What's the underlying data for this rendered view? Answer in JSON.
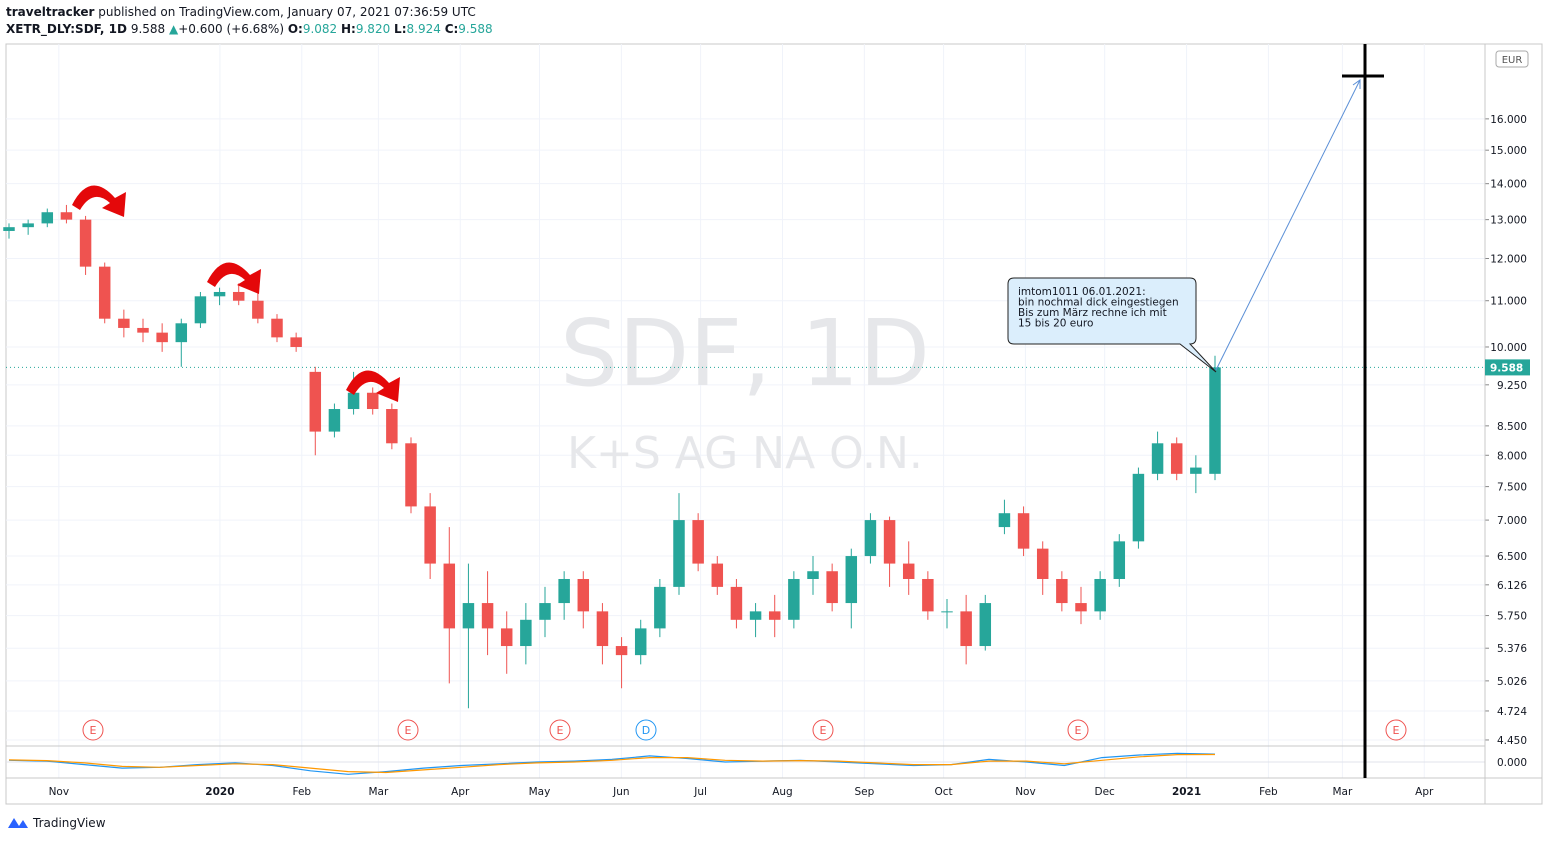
{
  "header": {
    "publisher": "traveltracker",
    "published": "published on TradingView.com, January 07, 2021 07:36:59 UTC",
    "symbol": "XETR_DLY:SDF, 1D",
    "last": "9.588",
    "change": "+0.600 (+6.68%)",
    "o_label": "O:",
    "o": "9.082",
    "h_label": "H:",
    "h": "9.820",
    "l_label": "L:",
    "l": "8.924",
    "c_label": "C:",
    "c": "9.588"
  },
  "chart_data": {
    "type": "candlestick",
    "watermark": "SDF, 1D",
    "watermark_sub": "K+S AG NA O.N.",
    "currency": "EUR",
    "annotation": [
      "imtom1011 06.01.2021:",
      "bin nochmal dick eingestiegen",
      "Bis zum März rechne ich mit",
      "15 bis 20 euro"
    ],
    "events": [
      "E",
      "E",
      "E",
      "D",
      "E",
      "E",
      "E"
    ],
    "up_color": "#26a69a",
    "down_color": "#ef5350",
    "log_scale": true,
    "grid": true,
    "last_price": 9.588,
    "candles": [
      [
        12.7,
        12.9,
        12.5,
        12.8
      ],
      [
        12.8,
        13.0,
        12.6,
        12.9
      ],
      [
        12.9,
        13.3,
        12.8,
        13.2
      ],
      [
        13.2,
        13.4,
        12.9,
        13.0
      ],
      [
        13.0,
        13.1,
        11.6,
        11.8
      ],
      [
        11.8,
        11.9,
        10.5,
        10.6
      ],
      [
        10.6,
        10.8,
        10.2,
        10.4
      ],
      [
        10.4,
        10.6,
        10.1,
        10.3
      ],
      [
        10.3,
        10.5,
        9.9,
        10.1
      ],
      [
        10.1,
        10.6,
        9.6,
        10.5
      ],
      [
        10.5,
        11.2,
        10.4,
        11.1
      ],
      [
        11.1,
        11.3,
        10.9,
        11.2
      ],
      [
        11.2,
        11.4,
        10.9,
        11.0
      ],
      [
        11.0,
        11.2,
        10.5,
        10.6
      ],
      [
        10.6,
        10.7,
        10.1,
        10.2
      ],
      [
        10.2,
        10.3,
        9.9,
        10.0
      ],
      [
        9.5,
        9.6,
        8.0,
        8.4
      ],
      [
        8.4,
        8.9,
        8.3,
        8.8
      ],
      [
        8.8,
        9.5,
        8.7,
        9.1
      ],
      [
        9.1,
        9.2,
        8.7,
        8.8
      ],
      [
        8.8,
        8.9,
        8.1,
        8.2
      ],
      [
        8.2,
        8.3,
        7.1,
        7.2
      ],
      [
        7.2,
        7.4,
        6.2,
        6.4
      ],
      [
        6.4,
        6.9,
        5.0,
        5.6
      ],
      [
        5.6,
        6.4,
        4.75,
        5.9
      ],
      [
        5.9,
        6.3,
        5.3,
        5.6
      ],
      [
        5.6,
        5.8,
        5.1,
        5.4
      ],
      [
        5.4,
        5.9,
        5.2,
        5.7
      ],
      [
        5.7,
        6.1,
        5.5,
        5.9
      ],
      [
        5.9,
        6.3,
        5.7,
        6.2
      ],
      [
        6.2,
        6.3,
        5.6,
        5.8
      ],
      [
        5.8,
        5.9,
        5.2,
        5.4
      ],
      [
        5.4,
        5.5,
        4.95,
        5.3
      ],
      [
        5.3,
        5.7,
        5.2,
        5.6
      ],
      [
        5.6,
        6.2,
        5.5,
        6.1
      ],
      [
        6.1,
        7.4,
        6.0,
        7.0
      ],
      [
        7.0,
        7.1,
        6.3,
        6.4
      ],
      [
        6.4,
        6.5,
        6.0,
        6.1
      ],
      [
        6.1,
        6.2,
        5.6,
        5.7
      ],
      [
        5.7,
        5.9,
        5.5,
        5.8
      ],
      [
        5.8,
        6.0,
        5.5,
        5.7
      ],
      [
        5.7,
        6.3,
        5.6,
        6.2
      ],
      [
        6.2,
        6.5,
        6.0,
        6.3
      ],
      [
        6.3,
        6.4,
        5.8,
        5.9
      ],
      [
        5.9,
        6.6,
        5.6,
        6.5
      ],
      [
        6.5,
        7.1,
        6.4,
        7.0
      ],
      [
        7.0,
        7.05,
        6.1,
        6.4
      ],
      [
        6.4,
        6.7,
        6.0,
        6.2
      ],
      [
        6.2,
        6.3,
        5.7,
        5.8
      ],
      [
        5.8,
        5.95,
        5.6,
        5.8
      ],
      [
        5.8,
        6.0,
        5.2,
        5.4
      ],
      [
        5.4,
        6.0,
        5.35,
        5.9
      ],
      [
        6.9,
        7.3,
        6.8,
        7.1
      ],
      [
        7.1,
        7.2,
        6.5,
        6.6
      ],
      [
        6.6,
        6.7,
        6.0,
        6.2
      ],
      [
        6.2,
        6.3,
        5.8,
        5.9
      ],
      [
        5.9,
        6.1,
        5.65,
        5.8
      ],
      [
        5.8,
        6.3,
        5.7,
        6.2
      ],
      [
        6.2,
        6.8,
        6.1,
        6.7
      ],
      [
        6.7,
        7.8,
        6.6,
        7.7
      ],
      [
        7.7,
        8.4,
        7.6,
        8.2
      ],
      [
        8.2,
        8.3,
        7.6,
        7.7
      ],
      [
        7.7,
        8.0,
        7.4,
        7.8
      ],
      [
        7.7,
        9.82,
        7.6,
        9.588
      ]
    ],
    "ylim": [
      4.404,
      18.63
    ],
    "yticks": [
      {
        "value": 4.45,
        "label": "4.450"
      },
      {
        "value": 4.724,
        "label": "4.724"
      },
      {
        "value": 5.026,
        "label": "5.026"
      },
      {
        "value": 5.376,
        "label": "5.376"
      },
      {
        "value": 5.75,
        "label": "5.750"
      },
      {
        "value": 6.126,
        "label": "6.126"
      },
      {
        "value": 6.5,
        "label": "6.500"
      },
      {
        "value": 7,
        "label": "7.000"
      },
      {
        "value": 7.5,
        "label": "7.500"
      },
      {
        "value": 8,
        "label": "8.000"
      },
      {
        "value": 8.5,
        "label": "8.500"
      },
      {
        "value": 9.25,
        "label": "9.250"
      },
      {
        "value": 10,
        "label": "10.000"
      },
      {
        "value": 11,
        "label": "11.000"
      },
      {
        "value": 12,
        "label": "12.000"
      },
      {
        "value": 13,
        "label": "13.000"
      },
      {
        "value": 14,
        "label": "14.000"
      },
      {
        "value": 15,
        "label": "15.000"
      },
      {
        "value": 16,
        "label": "16.000"
      }
    ],
    "xlim": [
      "2019-10-12",
      "2021-04-24"
    ],
    "xticks": [
      {
        "value": "2019-11-01",
        "label": "Nov"
      },
      {
        "value": "2020-01-01",
        "label": "2020"
      },
      {
        "value": "2020-02-01",
        "label": "Feb"
      },
      {
        "value": "2020-03-01",
        "label": "Mar"
      },
      {
        "value": "2020-04-01",
        "label": "Apr"
      },
      {
        "value": "2020-05-01",
        "label": "May"
      },
      {
        "value": "2020-06-01",
        "label": "Jun"
      },
      {
        "value": "2020-07-01",
        "label": "Jul"
      },
      {
        "value": "2020-08-01",
        "label": "Aug"
      },
      {
        "value": "2020-09-01",
        "label": "Sep"
      },
      {
        "value": "2020-10-01",
        "label": "Oct"
      },
      {
        "value": "2020-11-01",
        "label": "Nov"
      },
      {
        "value": "2020-12-01",
        "label": "Dec"
      },
      {
        "value": "2021-01-01",
        "label": "2021"
      },
      {
        "value": "2021-02-01",
        "label": "Feb"
      },
      {
        "value": "2021-03-01",
        "label": "Mar"
      },
      {
        "value": "2021-04-01",
        "label": "Apr"
      }
    ],
    "macd": {
      "ylim": [
        -0.8,
        0.8
      ],
      "yticks": [
        {
          "value": 0,
          "label": "0.000"
        }
      ],
      "series": [
        {
          "color": "#2196f3",
          "values": [
            0.1,
            0.05,
            -0.15,
            -0.35,
            -0.3,
            -0.15,
            -0.05,
            -0.2,
            -0.5,
            -0.7,
            -0.55,
            -0.35,
            -0.2,
            -0.1,
            0.0,
            0.05,
            0.15,
            0.35,
            0.2,
            0.0,
            0.05,
            0.1,
            0.0,
            -0.1,
            -0.2,
            -0.15,
            0.15,
            0.0,
            -0.2,
            0.25,
            0.4,
            0.5,
            0.45
          ]
        },
        {
          "color": "#ff9800",
          "values": [
            0.12,
            0.08,
            -0.05,
            -0.25,
            -0.3,
            -0.2,
            -0.1,
            -0.15,
            -0.35,
            -0.55,
            -0.6,
            -0.45,
            -0.3,
            -0.15,
            -0.05,
            0.0,
            0.1,
            0.25,
            0.25,
            0.1,
            0.05,
            0.08,
            0.05,
            -0.05,
            -0.15,
            -0.15,
            0.05,
            0.05,
            -0.1,
            0.1,
            0.3,
            0.42,
            0.43
          ]
        }
      ]
    }
  },
  "footer": {
    "brand": "TradingView"
  }
}
